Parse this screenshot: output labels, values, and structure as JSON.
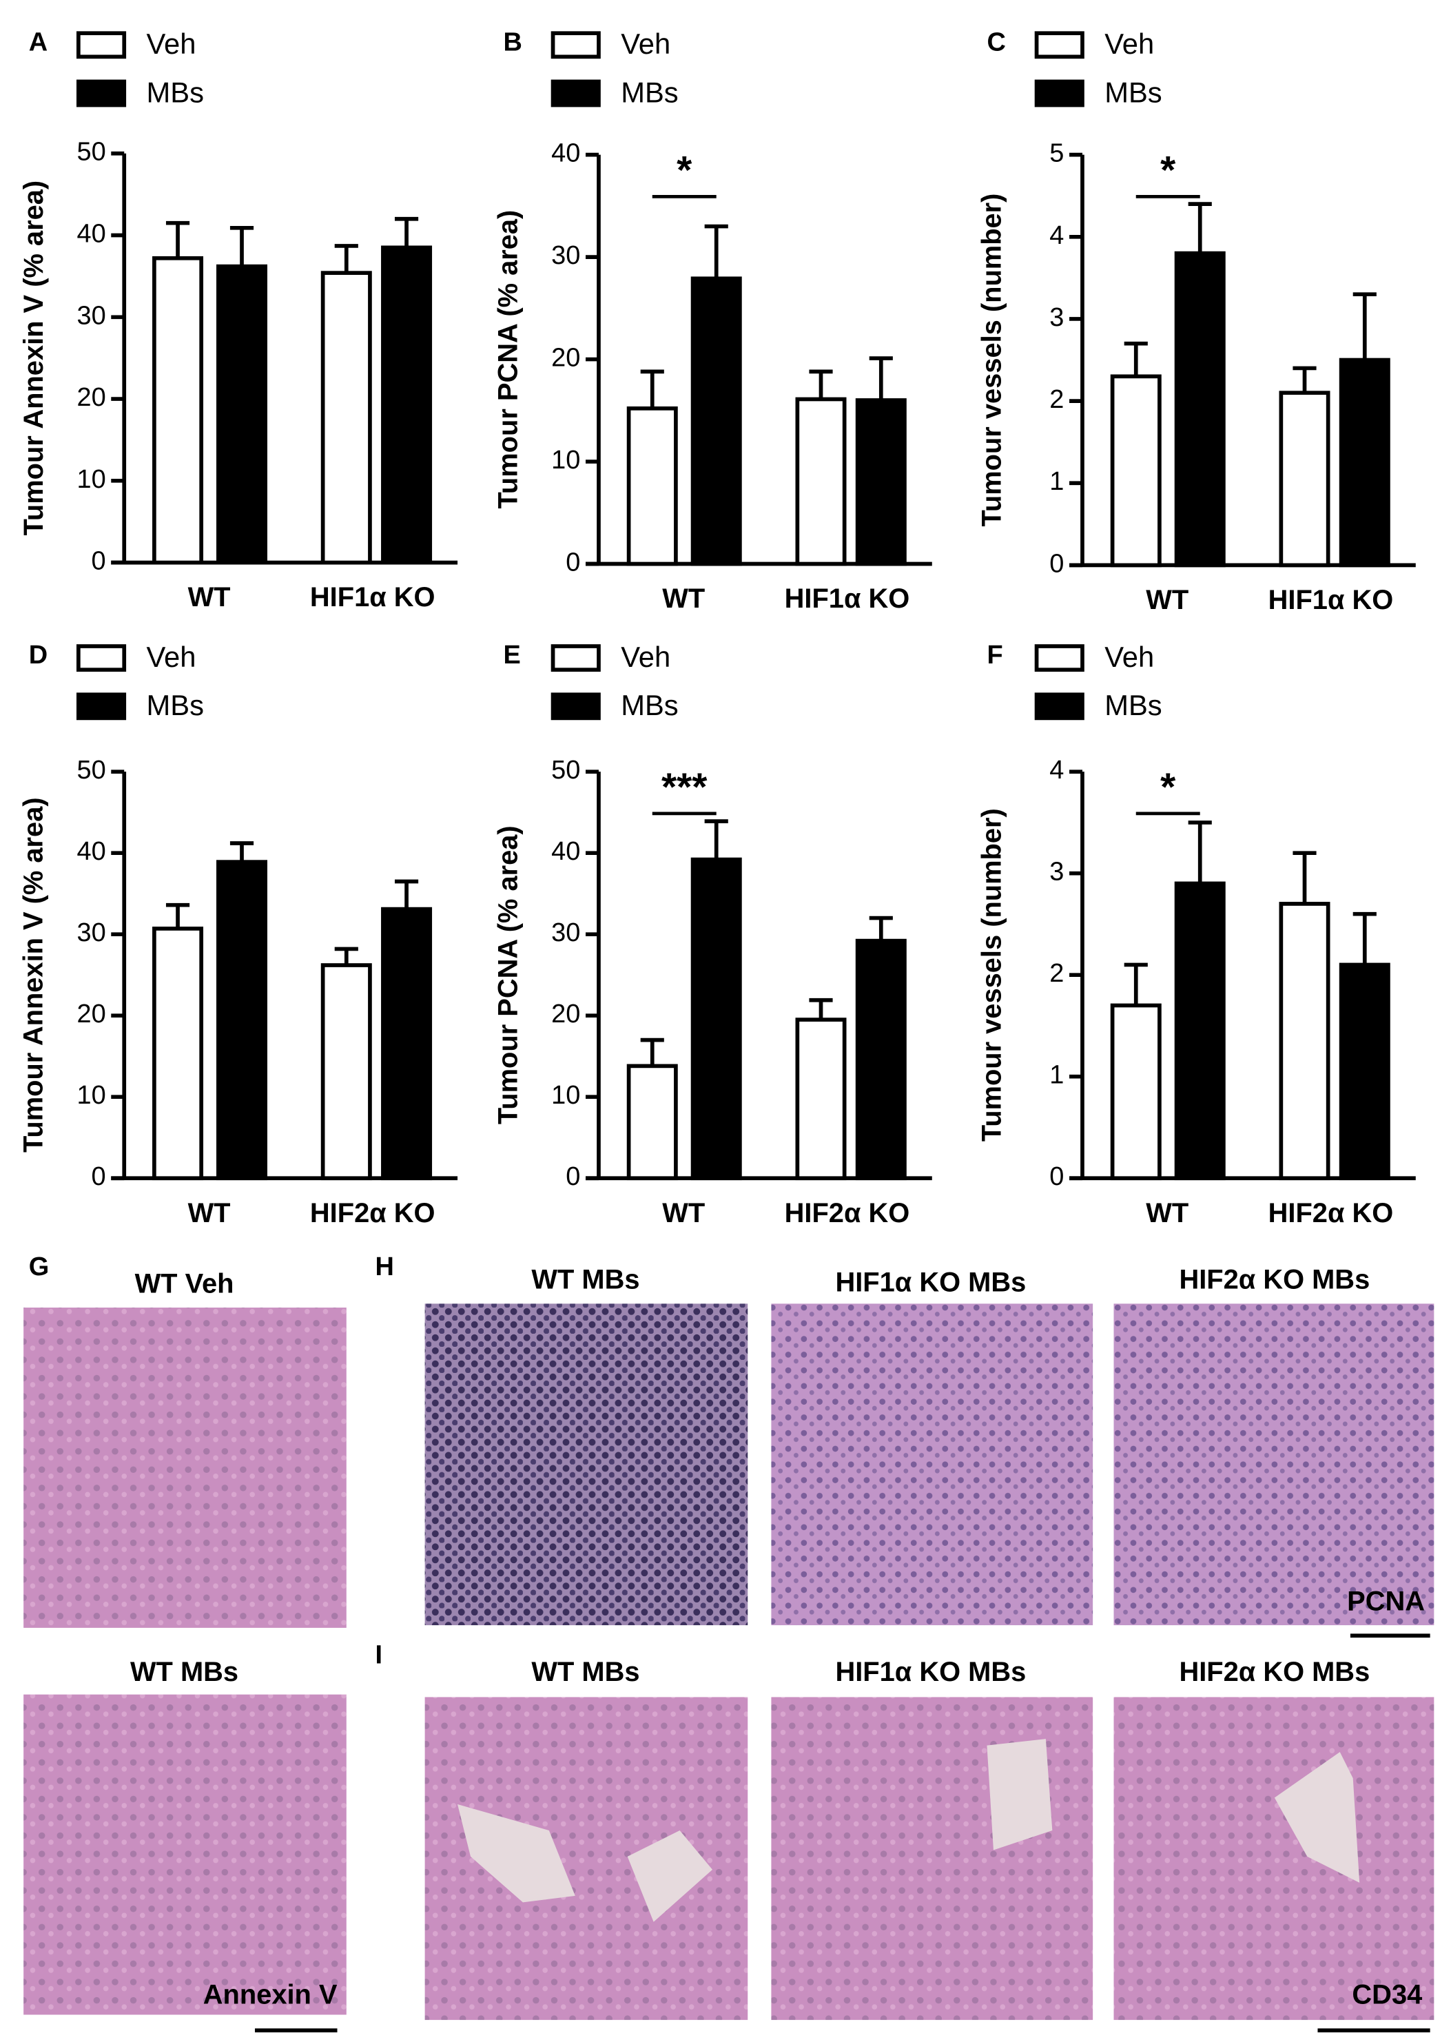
{
  "chart_data": [
    {
      "type": "bar",
      "panel": "A",
      "ylabel": "Tumour Annexin V (% area)",
      "categories": [
        "WT",
        "HIF1α KO"
      ],
      "series": [
        {
          "name": "Veh",
          "color": "#ffffff",
          "values": [
            37.2,
            35.4
          ],
          "errors": [
            4.3,
            3.3
          ]
        },
        {
          "name": "MBs",
          "color": "#000000",
          "values": [
            36.2,
            38.5
          ],
          "errors": [
            4.7,
            3.5
          ]
        }
      ],
      "ylim": [
        0,
        50
      ],
      "yticks": [
        0,
        10,
        20,
        30,
        40,
        50
      ]
    },
    {
      "type": "bar",
      "panel": "B",
      "ylabel": "Tumour PCNA (% area)",
      "categories": [
        "WT",
        "HIF1α KO"
      ],
      "series": [
        {
          "name": "Veh",
          "color": "#ffffff",
          "values": [
            15.2,
            16.1
          ],
          "errors": [
            3.6,
            2.7
          ]
        },
        {
          "name": "MBs",
          "color": "#000000",
          "values": [
            27.9,
            16.0
          ],
          "errors": [
            5.1,
            4.1
          ]
        }
      ],
      "ylim": [
        0,
        40
      ],
      "yticks": [
        0,
        10,
        20,
        30,
        40
      ],
      "significance": "*"
    },
    {
      "type": "bar",
      "panel": "C",
      "ylabel": "Tumour vessels (number)",
      "categories": [
        "WT",
        "HIF1α KO"
      ],
      "series": [
        {
          "name": "Veh",
          "color": "#ffffff",
          "values": [
            2.3,
            2.1
          ],
          "errors": [
            0.4,
            0.3
          ]
        },
        {
          "name": "MBs",
          "color": "#000000",
          "values": [
            3.8,
            2.5
          ],
          "errors": [
            0.6,
            0.8
          ]
        }
      ],
      "ylim": [
        0,
        5
      ],
      "yticks": [
        0,
        1,
        2,
        3,
        4,
        5
      ],
      "significance": "*"
    },
    {
      "type": "bar",
      "panel": "D",
      "ylabel": "Tumour Annexin V (% area)",
      "categories": [
        "WT",
        "HIF2α KO"
      ],
      "series": [
        {
          "name": "Veh",
          "color": "#ffffff",
          "values": [
            30.7,
            26.2
          ],
          "errors": [
            2.9,
            2.0
          ]
        },
        {
          "name": "MBs",
          "color": "#000000",
          "values": [
            38.9,
            33.1
          ],
          "errors": [
            2.3,
            3.4
          ]
        }
      ],
      "ylim": [
        0,
        50
      ],
      "yticks": [
        0,
        10,
        20,
        30,
        40,
        50
      ]
    },
    {
      "type": "bar",
      "panel": "E",
      "ylabel": "Tumour PCNA (% area)",
      "categories": [
        "WT",
        "HIF2α KO"
      ],
      "series": [
        {
          "name": "Veh",
          "color": "#ffffff",
          "values": [
            13.8,
            19.5
          ],
          "errors": [
            3.2,
            2.4
          ]
        },
        {
          "name": "MBs",
          "color": "#000000",
          "values": [
            39.2,
            29.2
          ],
          "errors": [
            4.7,
            2.8
          ]
        }
      ],
      "ylim": [
        0,
        50
      ],
      "yticks": [
        0,
        10,
        20,
        30,
        40,
        50
      ],
      "significance": "***"
    },
    {
      "type": "bar",
      "panel": "F",
      "ylabel": "Tumour vessels (number)",
      "categories": [
        "WT",
        "HIF2α KO"
      ],
      "series": [
        {
          "name": "Veh",
          "color": "#ffffff",
          "values": [
            1.7,
            2.7
          ],
          "errors": [
            0.4,
            0.5
          ]
        },
        {
          "name": "MBs",
          "color": "#000000",
          "values": [
            2.9,
            2.1
          ],
          "errors": [
            0.6,
            0.5
          ]
        }
      ],
      "ylim": [
        0,
        4
      ],
      "yticks": [
        0,
        1,
        2,
        3,
        4
      ],
      "significance": "*"
    }
  ],
  "micrographs": [
    {
      "panel": "G",
      "images": [
        "WT Veh",
        "WT MBs"
      ],
      "stain": "Annexin V"
    },
    {
      "panel": "H",
      "images": [
        "WT MBs",
        "HIF1α KO MBs",
        "HIF2α KO MBs"
      ],
      "stain": "PCNA"
    },
    {
      "panel": "I",
      "images": [
        "WT MBs",
        "HIF1α KO MBs",
        "HIF2α KO MBs"
      ],
      "stain": "CD34"
    }
  ]
}
